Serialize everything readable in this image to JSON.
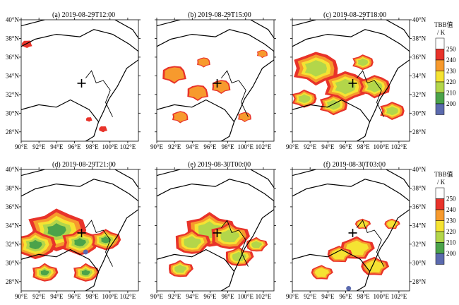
{
  "figure": {
    "panels": [
      {
        "id": "a",
        "title": "(a) 2019-08-29T12:00"
      },
      {
        "id": "b",
        "title": "(b) 2019-08-29T15:00"
      },
      {
        "id": "c",
        "title": "(c) 2019-08-29T18:00"
      },
      {
        "id": "d",
        "title": "(d) 2019-08-29T21:00"
      },
      {
        "id": "e",
        "title": "(e) 2019-08-30T00:00"
      },
      {
        "id": "f",
        "title": "(f) 2019-08-30T03:00"
      }
    ],
    "x_ticks": [
      "90°E",
      "92°E",
      "94°E",
      "96°E",
      "98°E",
      "100°E",
      "102°E"
    ],
    "y_ticks_left": [
      "28°N",
      "30°N",
      "32°N",
      "34°N",
      "36°N",
      "38°N",
      "40°N"
    ],
    "y_ticks_right": [
      "28°N",
      "30°N",
      "32°N",
      "34°N",
      "36°N",
      "38°N",
      "40°N"
    ],
    "colorbar": {
      "title": "TBB值",
      "unit": "/ K",
      "levels": [
        "200",
        "210",
        "220",
        "230",
        "240",
        "250"
      ],
      "colors": [
        "#ffffff",
        "#e8332a",
        "#f79a2d",
        "#f5e332",
        "#b3d64a",
        "#4ba34a",
        "#5b6aae"
      ]
    },
    "marker": {
      "symbol": "+",
      "lon": 96.8,
      "lat": 33.2
    }
  }
}
